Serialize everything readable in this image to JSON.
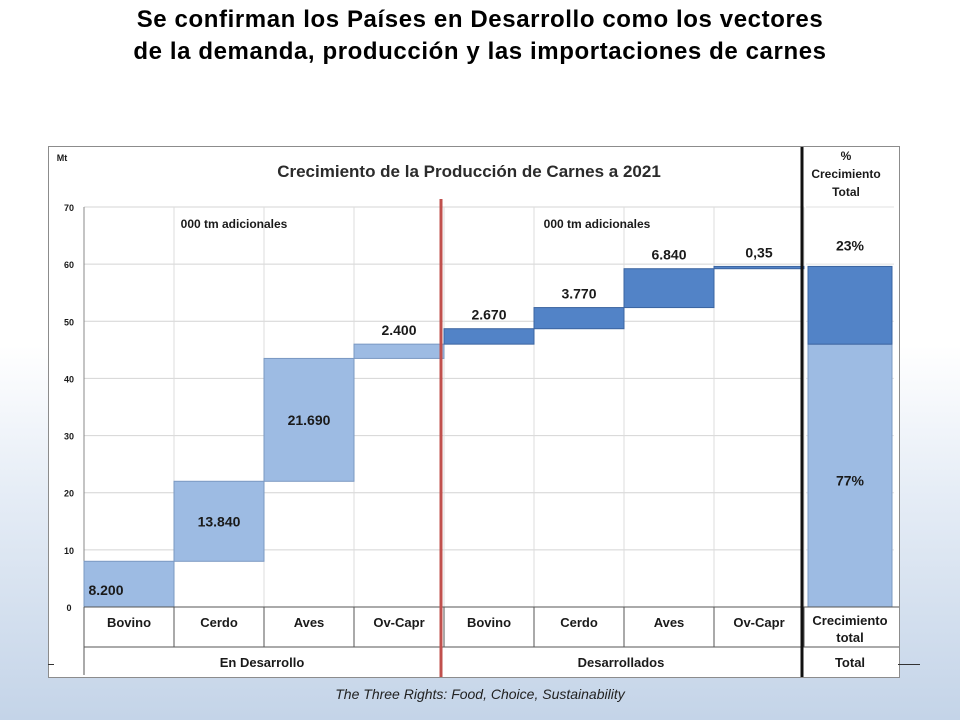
{
  "slide": {
    "title_line1": "Se confirman los Países en Desarrollo como los vectores",
    "title_line2": "de la demanda, producción y las importaciones de carnes",
    "footer": "The Three Rights: Food, Choice, Sustainability"
  },
  "colors": {
    "light_bar": "#9dbbe3",
    "dark_bar": "#5283c7",
    "divider_red": "#c0504d",
    "divider_black": "#111111"
  },
  "chart_data": {
    "type": "bar",
    "subtype": "waterfall",
    "title": "Crecimiento de la Producción de Carnes a 2021",
    "ylabel": "Mt",
    "ylim": [
      0,
      70
    ],
    "yticks": [
      0,
      10,
      20,
      30,
      40,
      50,
      60,
      70
    ],
    "annotation_left": "000 tm adicionales",
    "annotation_right": "000 tm adicionales",
    "right_header": [
      "%",
      "Crecimiento",
      "Total"
    ],
    "groups": [
      {
        "name": "En Desarrollo",
        "categories": [
          "Bovino",
          "Cerdo",
          "Aves",
          "Ov-Capr"
        ]
      },
      {
        "name": "Desarrollados",
        "categories": [
          "Bovino",
          "Cerdo",
          "Aves",
          "Ov-Capr"
        ]
      },
      {
        "name": "Total",
        "categories": [
          "Crecimiento total"
        ]
      }
    ],
    "bars": [
      {
        "group": "En Desarrollo",
        "category": "Bovino",
        "label": "8.200",
        "base": 0,
        "top": 8.0
      },
      {
        "group": "En Desarrollo",
        "category": "Cerdo",
        "label": "13.840",
        "base": 8.0,
        "top": 22.0
      },
      {
        "group": "En Desarrollo",
        "category": "Aves",
        "label": "21.690",
        "base": 22.0,
        "top": 43.5
      },
      {
        "group": "En Desarrollo",
        "category": "Ov-Capr",
        "label": "2.400",
        "base": 43.5,
        "top": 46.0
      },
      {
        "group": "Desarrollados",
        "category": "Bovino",
        "label": "2.670",
        "base": 46.0,
        "top": 48.7
      },
      {
        "group": "Desarrollados",
        "category": "Cerdo",
        "label": "3.770",
        "base": 48.7,
        "top": 52.4
      },
      {
        "group": "Desarrollados",
        "category": "Aves",
        "label": "6.840",
        "base": 52.4,
        "top": 59.2
      },
      {
        "group": "Desarrollados",
        "category": "Ov-Capr",
        "label": "0,35",
        "base": 59.2,
        "top": 59.6
      }
    ],
    "total": {
      "category": "Crecimiento total",
      "segments": [
        {
          "name": "En Desarrollo",
          "label": "77%",
          "base": 0,
          "top": 46.0
        },
        {
          "name": "Desarrollados",
          "label": "23%",
          "base": 46.0,
          "top": 59.6
        }
      ]
    },
    "grid": true,
    "legend": "none"
  }
}
